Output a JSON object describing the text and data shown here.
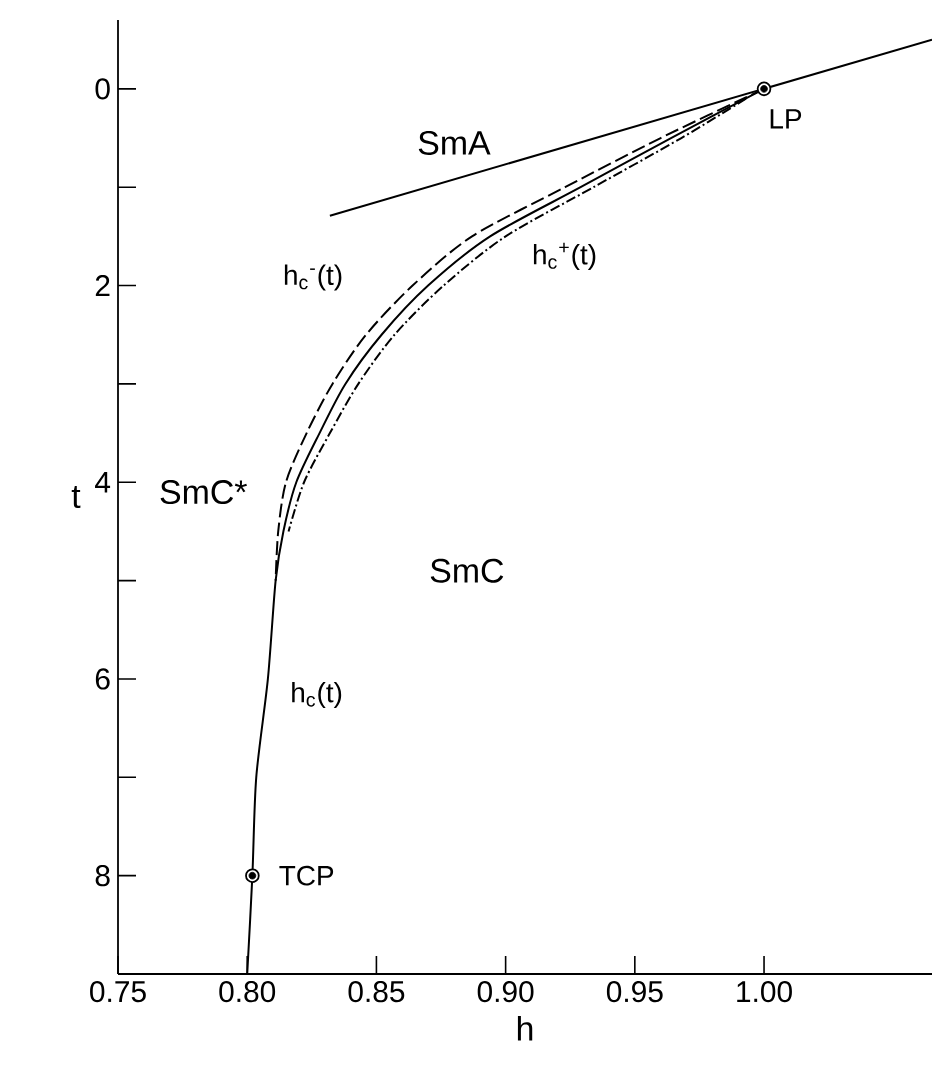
{
  "chart_data": {
    "type": "line",
    "xlabel": "h",
    "ylabel": "t",
    "xlim": [
      0.75,
      1.065
    ],
    "ylim": [
      9,
      -0.7
    ],
    "xticks": [
      0.75,
      {
        "value": 0.8,
        "label": "0.80"
      },
      0.85,
      {
        "value": 0.9,
        "label": "0.90"
      },
      0.95,
      {
        "value": 1.0,
        "label": "1.00"
      }
    ],
    "yticks": [
      0,
      {
        "value": 1,
        "label": null
      },
      2,
      {
        "value": 3,
        "label": null
      },
      4,
      {
        "value": 5,
        "label": null
      },
      6,
      {
        "value": 7,
        "label": null
      },
      8
    ],
    "series": [
      {
        "name": "h$_{c}$(t)",
        "color": "#000000",
        "line_style": "solid",
        "x": [
          1.0,
          0.964,
          0.929,
          0.894,
          0.87,
          0.852,
          0.838,
          0.828,
          0.819,
          0.814,
          0.811,
          0.808,
          0.8035,
          0.802,
          0.8
        ],
        "values": [
          0,
          0.5,
          1,
          1.5,
          2,
          2.5,
          3,
          3.5,
          4,
          4.5,
          5,
          6,
          7,
          8,
          9
        ]
      },
      {
        "name": "h$_{c}$$^{-}$(t)",
        "color": "#000000",
        "line_style": "dashed",
        "x": [
          1.0,
          0.96,
          0.923,
          0.887,
          0.864,
          0.846,
          0.833,
          0.823,
          0.815,
          0.812,
          0.811
        ],
        "values": [
          0,
          0.5,
          1,
          1.5,
          2,
          2.5,
          3,
          3.5,
          4,
          4.5,
          5
        ]
      },
      {
        "name": "h$_{c}$$^{+}$(t)",
        "color": "#000000",
        "line_style": "dotted",
        "x": [
          0.993,
          0.968,
          0.934,
          0.9,
          0.876,
          0.857,
          0.843,
          0.832,
          0.822,
          0.816
        ],
        "values": [
          0.1,
          0.5,
          1,
          1.5,
          2,
          2.5,
          3,
          3.5,
          4,
          4.5
        ]
      },
      {
        "color": "#000000",
        "line_style": "solid",
        "x": [
          0.832,
          1.065
        ],
        "values": [
          1.29,
          -0.5
        ]
      },
      {
        "type": "scatter",
        "name": "LP",
        "color": "#000000",
        "marker": "circle",
        "x": [
          1.0
        ],
        "values": [
          0
        ]
      },
      {
        "type": "scatter",
        "name": "TCP",
        "color": "#000000",
        "marker": "circle",
        "x": [
          0.802
        ],
        "values": [
          8
        ]
      }
    ],
    "annotations": [
      "SmA",
      "SmC*",
      "SmC"
    ]
  }
}
